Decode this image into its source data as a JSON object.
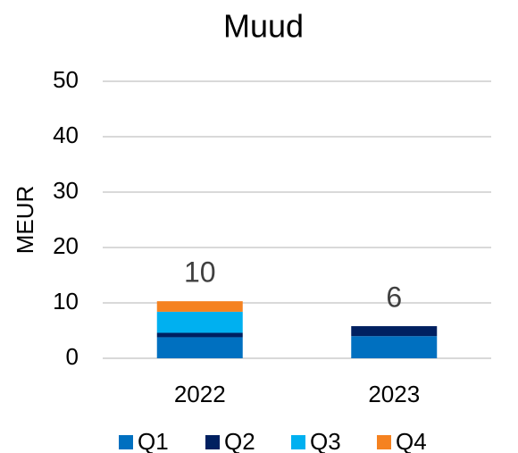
{
  "chart_data": {
    "type": "stacked_bar",
    "title": "Muud",
    "y_label": "MEUR",
    "categories": [
      "2022",
      "2023"
    ],
    "series": [
      {
        "name": "Q1",
        "color": "#0070c0",
        "values": [
          3.8,
          4.0
        ]
      },
      {
        "name": "Q2",
        "color": "#002060",
        "values": [
          0.8,
          1.8
        ]
      },
      {
        "name": "Q3",
        "color": "#00b0f0",
        "values": [
          3.8,
          0
        ]
      },
      {
        "name": "Q4",
        "color": "#f58220",
        "values": [
          1.9,
          0
        ]
      }
    ],
    "total_labels": [
      "10",
      "6"
    ],
    "ylim": [
      0,
      50
    ],
    "yticks": [
      0,
      10,
      20,
      30,
      40,
      50
    ],
    "grid": true,
    "legend": "bottom"
  }
}
